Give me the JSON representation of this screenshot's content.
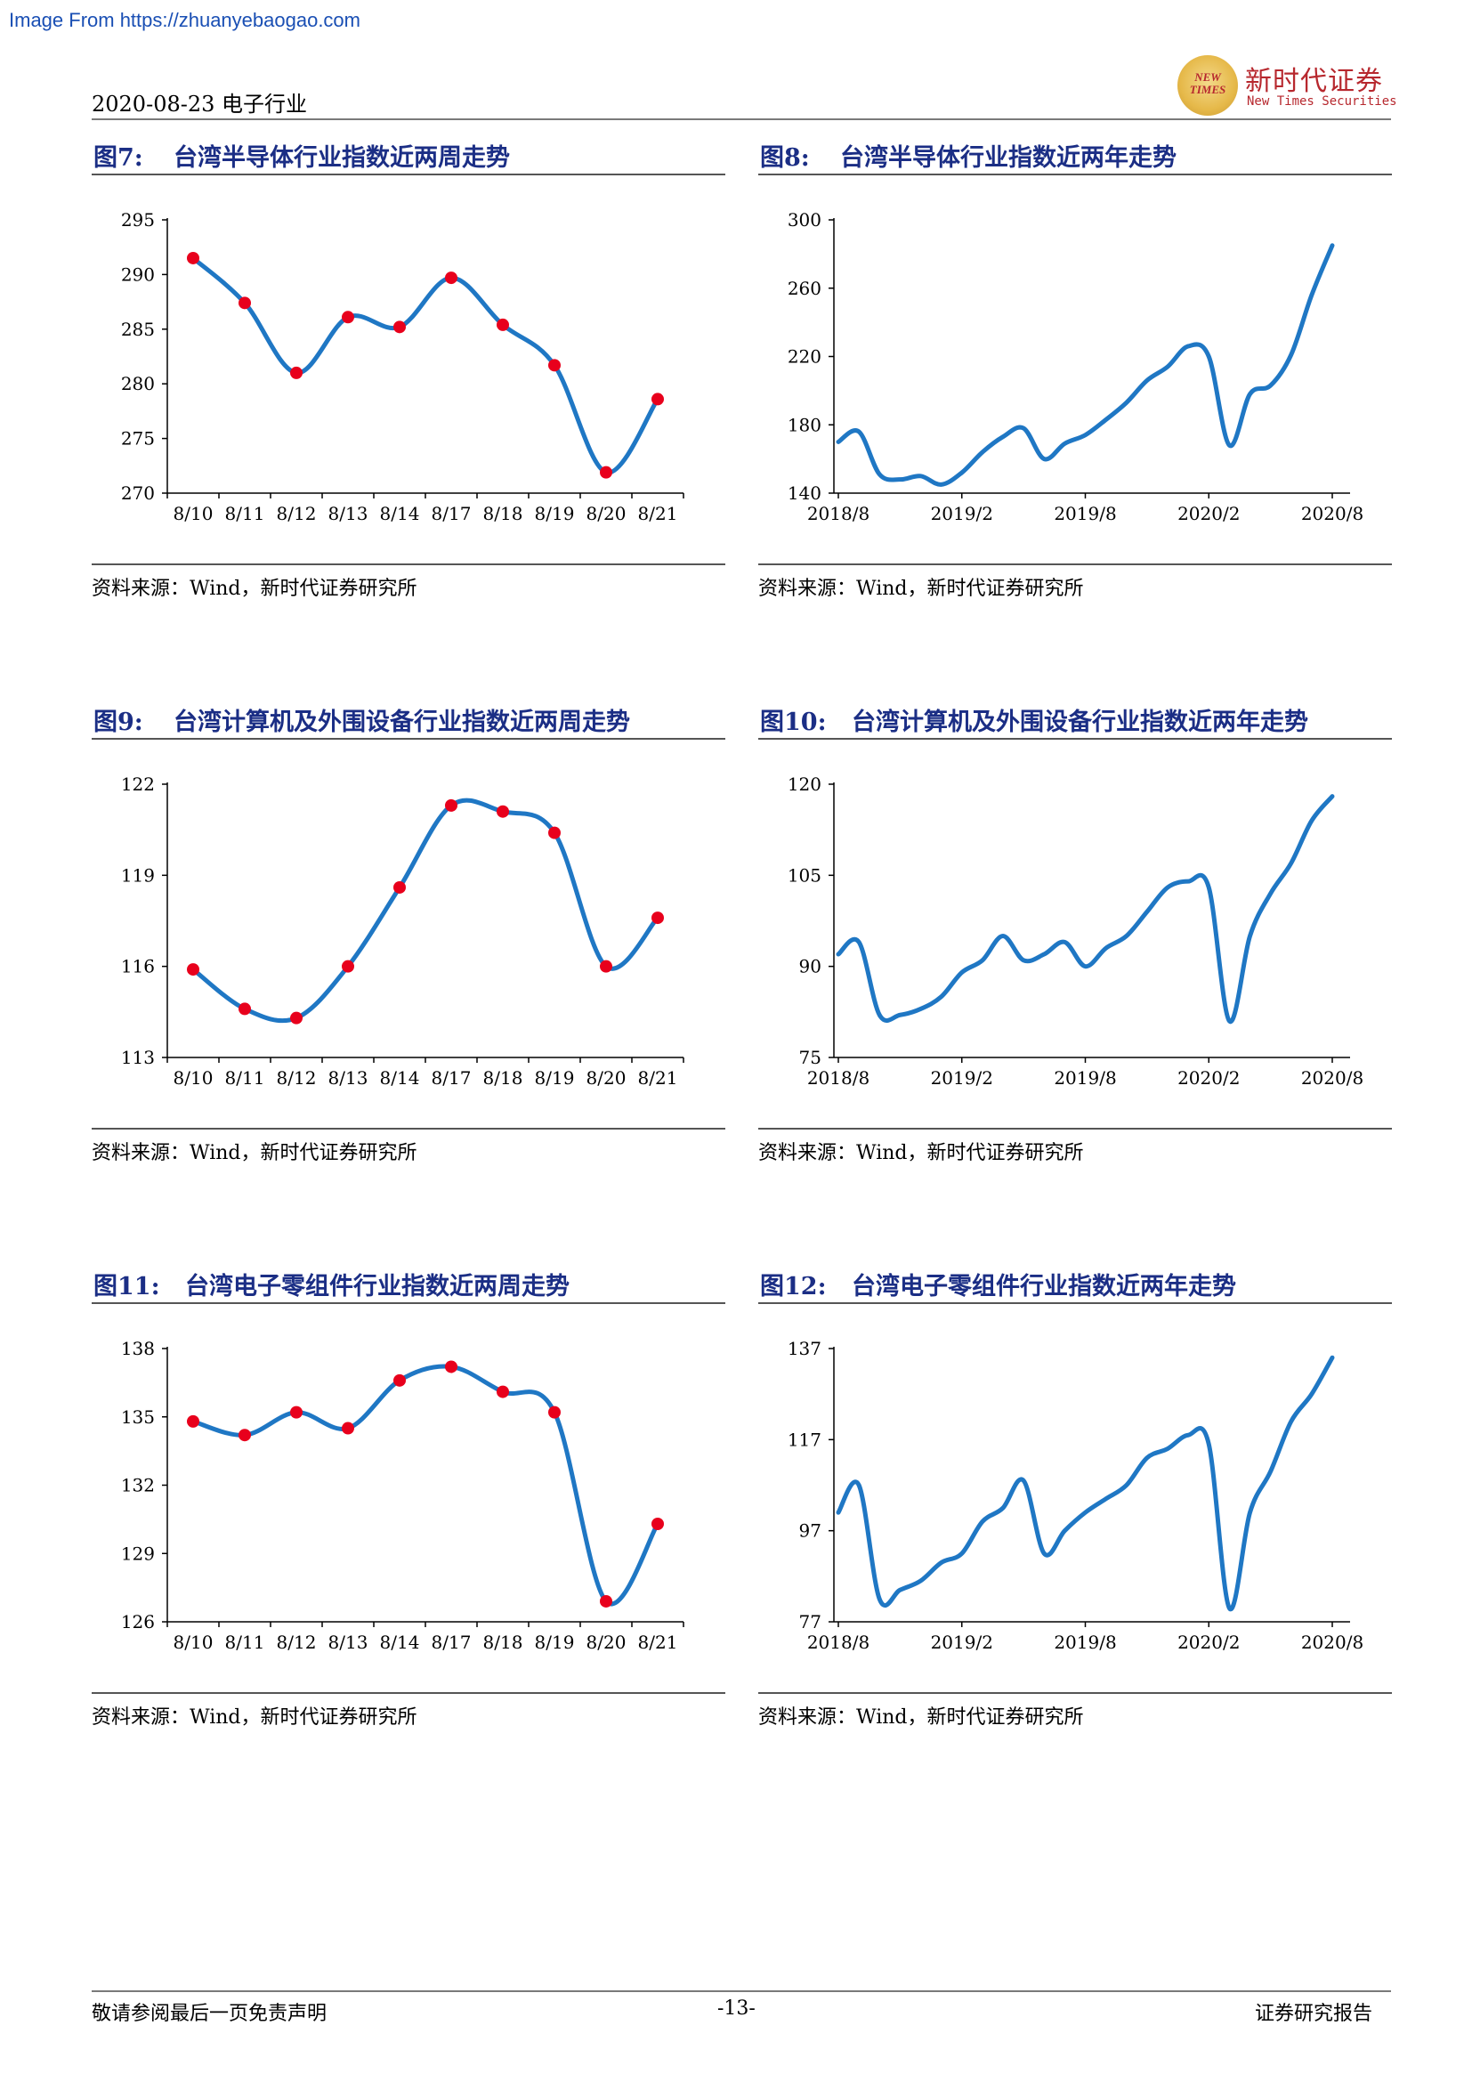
{
  "watermark": "Image From https://zhuanyebaogao.com",
  "header": {
    "date_sector": "2020-08-23  电子行业",
    "brand_cn": "新时代证券",
    "brand_en": "New Times Securities",
    "logo_text": "NEW TIMES"
  },
  "colors": {
    "line": "#1f77c4",
    "marker": "#e8001c",
    "title": "#1b2e85"
  },
  "panels": [
    {
      "num": "图7:",
      "title": "台湾半导体行业指数近两周走势",
      "source": "资料来源：Wind，新时代证券研究所"
    },
    {
      "num": "图8:",
      "title": "台湾半导体行业指数近两年走势",
      "source": "资料来源：Wind，新时代证券研究所"
    },
    {
      "num": "图9:",
      "title": "台湾计算机及外围设备行业指数近两周走势",
      "source": "资料来源：Wind，新时代证券研究所"
    },
    {
      "num": "图10:",
      "title": "台湾计算机及外围设备行业指数近两年走势",
      "source": "资料来源：Wind，新时代证券研究所"
    },
    {
      "num": "图11:",
      "title": "台湾电子零组件行业指数近两周走势",
      "source": "资料来源：Wind，新时代证券研究所"
    },
    {
      "num": "图12:",
      "title": "台湾电子零组件行业指数近两年走势",
      "source": "资料来源：Wind，新时代证券研究所"
    }
  ],
  "chart_data": [
    {
      "type": "line",
      "categories": [
        "8/10",
        "8/11",
        "8/12",
        "8/13",
        "8/14",
        "8/17",
        "8/18",
        "8/19",
        "8/20",
        "8/21"
      ],
      "values": [
        291.5,
        287.4,
        281.0,
        286.1,
        285.2,
        289.7,
        285.4,
        281.7,
        271.9,
        278.6
      ],
      "ylim": [
        270,
        295
      ],
      "yticks": [
        270,
        275,
        280,
        285,
        290,
        295
      ],
      "markers": true
    },
    {
      "type": "line",
      "xticks": [
        "2018/8",
        "2019/2",
        "2019/8",
        "2020/2",
        "2020/8"
      ],
      "x": [
        "2018/8",
        "2018/9",
        "2018/10",
        "2018/11",
        "2018/12",
        "2019/1",
        "2019/2",
        "2019/3",
        "2019/4",
        "2019/5",
        "2019/6",
        "2019/7",
        "2019/8",
        "2019/9",
        "2019/10",
        "2019/11",
        "2019/12",
        "2020/1",
        "2020/2",
        "2020/3",
        "2020/4",
        "2020/5",
        "2020/6",
        "2020/7",
        "2020/8"
      ],
      "values": [
        170,
        176,
        151,
        148,
        150,
        145,
        152,
        164,
        173,
        178,
        160,
        169,
        174,
        183,
        193,
        206,
        214,
        226,
        220,
        168,
        198,
        203,
        221,
        256,
        285
      ],
      "ylim": [
        140,
        300
      ],
      "yticks": [
        140,
        180,
        220,
        260,
        300
      ]
    },
    {
      "type": "line",
      "categories": [
        "8/10",
        "8/11",
        "8/12",
        "8/13",
        "8/14",
        "8/17",
        "8/18",
        "8/19",
        "8/20",
        "8/21"
      ],
      "values": [
        115.9,
        114.6,
        114.3,
        116.0,
        118.6,
        121.3,
        121.1,
        120.4,
        116.0,
        117.6
      ],
      "ylim": [
        113,
        122
      ],
      "yticks": [
        113,
        116,
        119,
        122
      ],
      "markers": true
    },
    {
      "type": "line",
      "xticks": [
        "2018/8",
        "2019/2",
        "2019/8",
        "2020/2",
        "2020/8"
      ],
      "x": [
        "2018/8",
        "2018/9",
        "2018/10",
        "2018/11",
        "2018/12",
        "2019/1",
        "2019/2",
        "2019/3",
        "2019/4",
        "2019/5",
        "2019/6",
        "2019/7",
        "2019/8",
        "2019/9",
        "2019/10",
        "2019/11",
        "2019/12",
        "2020/1",
        "2020/2",
        "2020/3",
        "2020/4",
        "2020/5",
        "2020/6",
        "2020/7",
        "2020/8"
      ],
      "values": [
        92,
        94,
        82,
        82,
        83,
        85,
        89,
        91,
        95,
        91,
        92,
        94,
        90,
        93,
        95,
        99,
        103,
        104,
        103,
        81,
        95,
        102,
        107,
        114,
        118
      ],
      "ylim": [
        75,
        120
      ],
      "yticks": [
        75,
        90,
        105,
        120
      ]
    },
    {
      "type": "line",
      "categories": [
        "8/10",
        "8/11",
        "8/12",
        "8/13",
        "8/14",
        "8/17",
        "8/18",
        "8/19",
        "8/20",
        "8/21"
      ],
      "values": [
        134.8,
        134.2,
        135.2,
        134.5,
        136.6,
        137.2,
        136.1,
        135.2,
        126.9,
        130.3
      ],
      "ylim": [
        126,
        138
      ],
      "yticks": [
        126,
        129,
        132,
        135,
        138
      ],
      "markers": true
    },
    {
      "type": "line",
      "xticks": [
        "2018/8",
        "2019/2",
        "2019/8",
        "2020/2",
        "2020/8"
      ],
      "x": [
        "2018/8",
        "2018/9",
        "2018/10",
        "2018/11",
        "2018/12",
        "2019/1",
        "2019/2",
        "2019/3",
        "2019/4",
        "2019/5",
        "2019/6",
        "2019/7",
        "2019/8",
        "2019/9",
        "2019/10",
        "2019/11",
        "2019/12",
        "2020/1",
        "2020/2",
        "2020/3",
        "2020/4",
        "2020/5",
        "2020/6",
        "2020/7",
        "2020/8"
      ],
      "values": [
        101,
        107,
        82,
        84,
        86,
        90,
        92,
        99,
        102,
        108,
        92,
        97,
        101,
        104,
        107,
        113,
        115,
        118,
        116,
        80,
        101,
        110,
        121,
        127,
        135
      ],
      "ylim": [
        77,
        137
      ],
      "yticks": [
        77,
        97,
        117,
        137
      ]
    }
  ],
  "footer": {
    "left": "敬请参阅最后一页免责声明",
    "center": "-13-",
    "right": "证券研究报告"
  }
}
